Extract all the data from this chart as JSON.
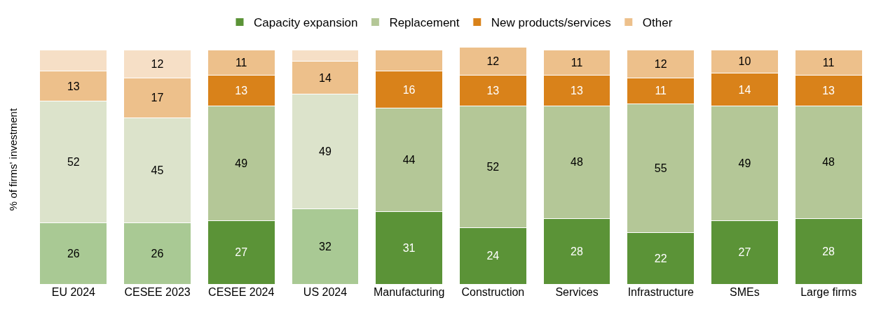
{
  "chart_data": {
    "type": "bar",
    "stacked": true,
    "ylabel": "% of firms' investment",
    "legend": "top",
    "categories": [
      "EU 2024",
      "CESEE 2023",
      "CESEE 2024",
      "US 2024",
      "Manufacturing",
      "Construction",
      "Services",
      "Infrastructure",
      "SMEs",
      "Large firms"
    ],
    "series": [
      {
        "name": "Capacity expansion",
        "color": "#5b9337",
        "colors": [
          "#a9c994",
          "#a9c994",
          "#5b9337",
          "#a9c994",
          "#5b9337",
          "#5b9337",
          "#5b9337",
          "#5b9337",
          "#5b9337",
          "#5b9337"
        ],
        "values": [
          26,
          26,
          27,
          32,
          31,
          24,
          28,
          22,
          27,
          28
        ],
        "value_labels": [
          "26",
          "26",
          "27",
          "32",
          "31",
          "24",
          "28",
          "22",
          "27",
          "28"
        ]
      },
      {
        "name": "Replacement",
        "color": "#b4c797",
        "colors": [
          "#dce3cb",
          "#dce3cb",
          "#b4c797",
          "#dce3cb",
          "#b4c797",
          "#b4c797",
          "#b4c797",
          "#b4c797",
          "#b4c797",
          "#b4c797"
        ],
        "values": [
          52,
          45,
          49,
          49,
          44,
          52,
          48,
          55,
          49,
          48
        ],
        "value_labels": [
          "52",
          "45",
          "49",
          "49",
          "44",
          "52",
          "48",
          "55",
          "49",
          "48"
        ]
      },
      {
        "name": "New products/services",
        "color": "#d9821a",
        "colors": [
          "#edc08b",
          "#edc08b",
          "#d9821a",
          "#edc08b",
          "#d9821a",
          "#d9821a",
          "#d9821a",
          "#d9821a",
          "#d9821a",
          "#d9821a"
        ],
        "values": [
          13,
          17,
          13,
          14,
          16,
          13,
          13,
          11,
          14,
          13
        ],
        "value_labels": [
          "13",
          "17",
          "13",
          "14",
          "16",
          "13",
          "13",
          "11",
          "14",
          "13"
        ]
      },
      {
        "name": "Other",
        "color": "#edc08b",
        "colors": [
          "#f6dfc6",
          "#f6dfc6",
          "#edc08b",
          "#f6dfc6",
          "#edc08b",
          "#edc08b",
          "#edc08b",
          "#edc08b",
          "#edc08b",
          "#edc08b"
        ],
        "values": [
          9,
          12,
          11,
          5,
          9,
          12,
          11,
          12,
          10,
          11
        ],
        "value_labels": [
          null,
          "12",
          "11",
          null,
          null,
          "12",
          "11",
          "12",
          "10",
          "11"
        ]
      }
    ]
  }
}
